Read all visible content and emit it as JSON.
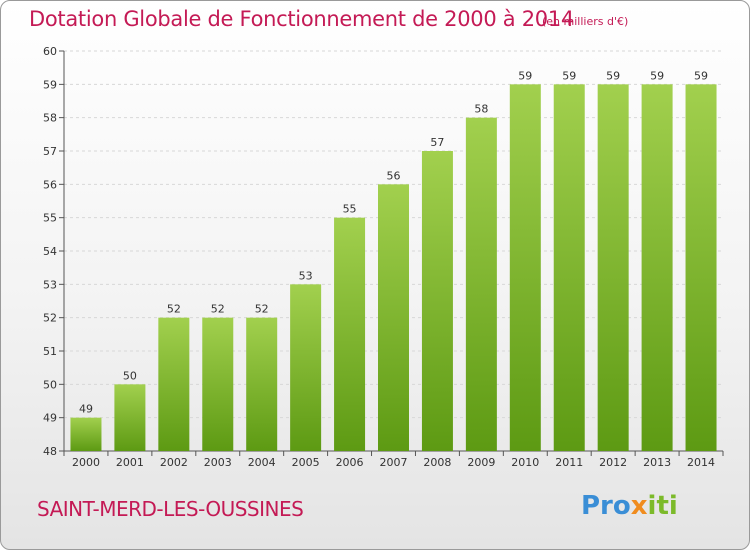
{
  "header": {
    "title": "Dotation Globale de Fonctionnement de 2000 à 2014",
    "subtitle": "(en milliers d'€)"
  },
  "footer": {
    "place": "SAINT-MERD-LES-OUSSINES",
    "logo": {
      "part1": "Pro",
      "part2": "x",
      "part3": "iti"
    }
  },
  "colors": {
    "title": "#c41a55",
    "bar_top": "#a2d04e",
    "bar_bottom": "#5d9a13",
    "logo_blue": "#3a8ed6",
    "logo_orange": "#f08c1e",
    "logo_green": "#7cba2a"
  },
  "chart_data": {
    "type": "bar",
    "title": "Dotation Globale de Fonctionnement de 2000 à 2014",
    "subtitle": "(en milliers d'€)",
    "xlabel": "",
    "ylabel": "",
    "categories": [
      "2000",
      "2001",
      "2002",
      "2003",
      "2004",
      "2005",
      "2006",
      "2007",
      "2008",
      "2009",
      "2010",
      "2011",
      "2012",
      "2013",
      "2014"
    ],
    "values": [
      49,
      50,
      52,
      52,
      52,
      53,
      55,
      56,
      57,
      58,
      59,
      59,
      59,
      59,
      59
    ],
    "ylim": [
      48,
      60
    ],
    "yticks": [
      48,
      49,
      50,
      51,
      52,
      53,
      54,
      55,
      56,
      57,
      58,
      59,
      60
    ],
    "grid": true
  }
}
